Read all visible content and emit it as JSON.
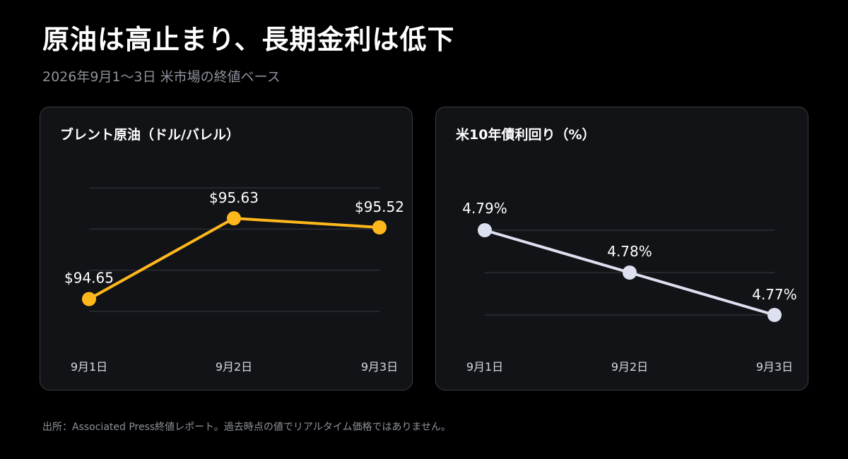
{
  "title": "原油は高止まり、長期金利は低下",
  "subtitle": "2026年9月1〜3日 米市場の終値ベース",
  "footer": "出所：Associated Press終値レポート。過去時点の値でリアルタイム価格ではありません。",
  "chart_data": [
    {
      "type": "line",
      "title": "ブレント原油（ドル/バレル）",
      "categories": [
        "9月1日",
        "9月2日",
        "9月3日"
      ],
      "values": [
        94.65,
        95.63,
        95.52
      ],
      "labels": [
        "$94.65",
        "$95.63",
        "$95.52"
      ],
      "ylim": [
        94.2,
        96.0
      ],
      "gridlines": [
        94.5,
        95.0,
        95.5,
        96.0
      ],
      "grid": true,
      "color": "#ffb81c"
    },
    {
      "type": "line",
      "title": "米10年債利回り（%）",
      "categories": [
        "9月1日",
        "9月2日",
        "9月3日"
      ],
      "values": [
        4.79,
        4.78,
        4.77
      ],
      "labels": [
        "4.79%",
        "4.78%",
        "4.77%"
      ],
      "ylim": [
        4.765,
        4.8
      ],
      "gridlines": [
        4.77,
        4.78,
        4.79
      ],
      "grid": true,
      "color": "#dde0ef"
    }
  ]
}
